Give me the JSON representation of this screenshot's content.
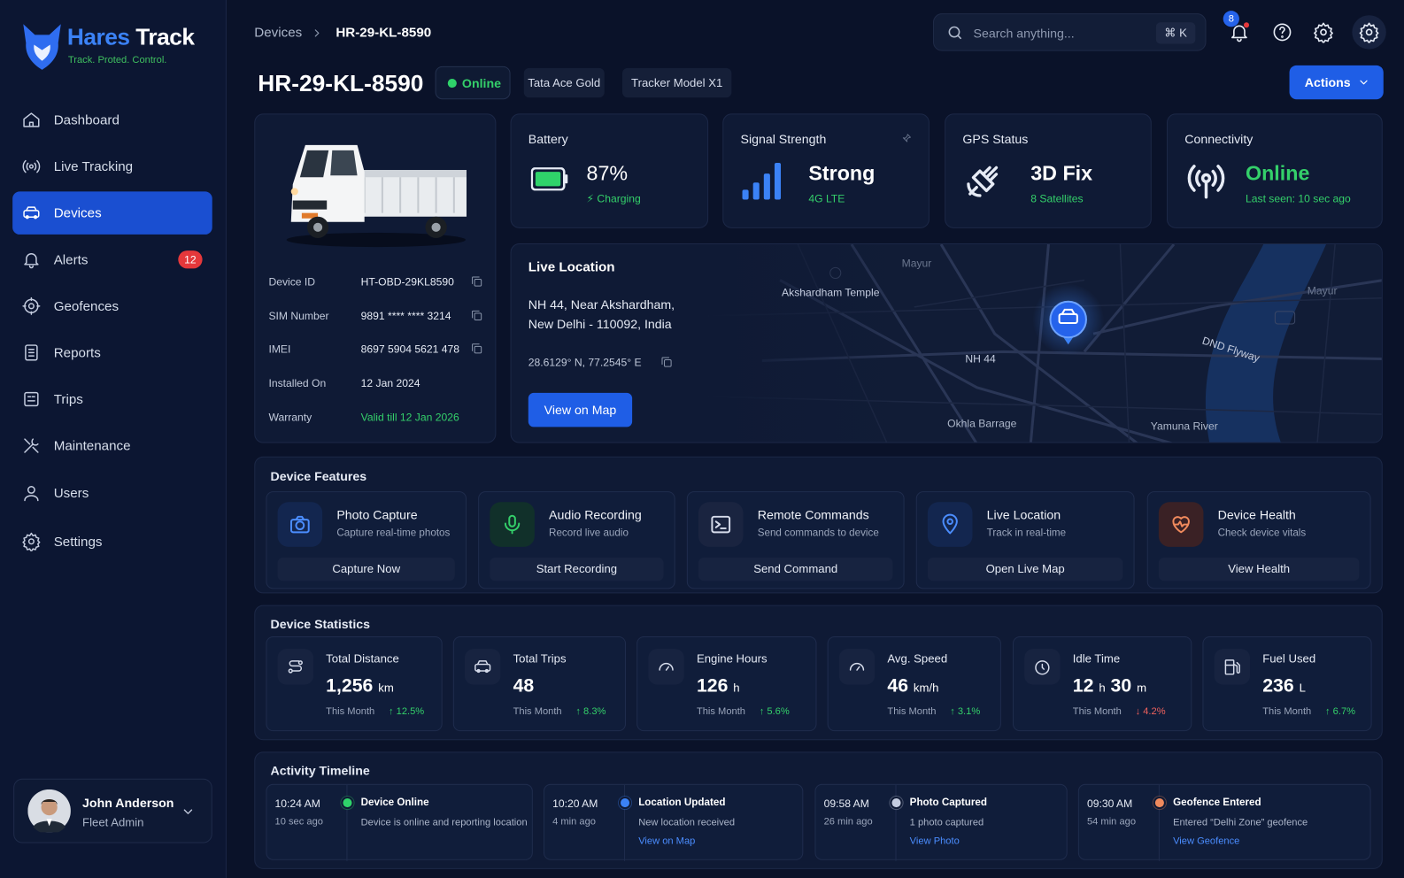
{
  "sidebar": {
    "brand_name_1": "Hares",
    "brand_name_2": "Track",
    "tagline": "Track. Proted. Control.",
    "nav": [
      {
        "label": "Dashboard"
      },
      {
        "label": "Live Tracking"
      },
      {
        "label": "Devices"
      },
      {
        "label": "Alerts",
        "badge": "12"
      },
      {
        "label": "Geofences"
      },
      {
        "label": "Reports"
      },
      {
        "label": "Trips"
      },
      {
        "label": "Maintenance"
      },
      {
        "label": "Users"
      },
      {
        "label": "Settings"
      }
    ],
    "user": {
      "name": "John Anderson",
      "role": "Fleet Admin"
    }
  },
  "header": {
    "breadcrumb": [
      "Devices",
      "HR-29-KL-8590"
    ],
    "search_placeholder": "Search anything...",
    "search_shortcut": "⌘ K",
    "notification_count": "8"
  },
  "device": {
    "name": "HR-29-KL-8590",
    "status": "Online",
    "tags": [
      "Tata Ace Gold",
      "Tracker Model X1"
    ],
    "actions": "Actions",
    "details": [
      {
        "label": "Device ID",
        "value": "HT-OBD-29KL8590"
      },
      {
        "label": "SIM Number",
        "value": "9891 **** **** 3214"
      },
      {
        "label": "IMEI",
        "value": "8697 5904 5621 478"
      },
      {
        "label": "Installed On",
        "value": "12 Jan 2024"
      },
      {
        "label": "Warranty",
        "value": "Valid till 12 Jan 2026"
      }
    ]
  },
  "status_cards": [
    {
      "title": "Battery",
      "value": "87%",
      "detail": "Charging"
    },
    {
      "title": "Signal Strength",
      "value": "Strong",
      "detail": "4G LTE"
    },
    {
      "title": "GPS Status",
      "value": "3D Fix",
      "detail": "8 Satellites"
    },
    {
      "title": "Connectivity",
      "value": "Online",
      "detail": "Last seen: 10 sec ago"
    }
  ],
  "location": {
    "title": "Live Location",
    "address": [
      "NH 44, Near Akshardham,",
      "New Delhi - 110092, India"
    ],
    "coordinates": "28.6129° N, 77.2545° E",
    "button": "View on Map",
    "map_labels": [
      "Akshardham Temple",
      "Mayur",
      "Mayur",
      "DND Flyway",
      "NH 44",
      "Okhla Barrage",
      "Yamuna River"
    ]
  },
  "features": {
    "title": "Device Features",
    "items": [
      {
        "name": "Photo Capture",
        "description": "Capture real-time photos",
        "button": "Capture Now"
      },
      {
        "name": "Audio Recording",
        "description": "Record live audio",
        "button": "Start Recording"
      },
      {
        "name": "Remote Commands",
        "description": "Send commands to device",
        "button": "Send Command"
      },
      {
        "name": "Live Location",
        "description": "Track in real-time",
        "button": "Open Live Map"
      },
      {
        "name": "Device Health",
        "description": "Check device vitals",
        "button": "View Health"
      }
    ]
  },
  "statistics": {
    "title": "Device Statistics",
    "items": [
      {
        "name": "Total Distance",
        "value": "1,256",
        "unit": "km",
        "period": "This Month",
        "change": "↑ 12.5%"
      },
      {
        "name": "Total Trips",
        "value": "48",
        "period": "This Month",
        "change": "↑ 8.3%"
      },
      {
        "name": "Engine Hours",
        "value": "126",
        "unit": "h",
        "period": "This Month",
        "change": "↑ 5.6%"
      },
      {
        "name": "Avg. Speed",
        "value": "46",
        "unit": "km/h",
        "period": "This Month",
        "change": "↑ 3.1%"
      },
      {
        "name": "Idle Time",
        "value": "12",
        "unit": "h",
        "value_2": "30",
        "unit_2": "m",
        "period": "This Month",
        "change": "↓ 4.2%"
      },
      {
        "name": "Fuel Used",
        "value": "236",
        "unit": "L",
        "period": "This Month",
        "change": "↑ 6.7%"
      }
    ]
  },
  "timeline": {
    "title": "Activity Timeline",
    "items": [
      {
        "time": "10:24 AM",
        "ago": "10 sec ago",
        "event": "Device Online",
        "description": "Device is online and reporting location"
      },
      {
        "time": "10:20 AM",
        "ago": "4 min ago",
        "event": "Location Updated",
        "description": "New location received",
        "link": "View on Map"
      },
      {
        "time": "09:58 AM",
        "ago": "26 min ago",
        "event": "Photo Captured",
        "description": "1 photo captured",
        "link": "View Photo"
      },
      {
        "time": "09:30 AM",
        "ago": "54 min ago",
        "event": "Geofence Entered",
        "description": "Entered “Delhi Zone” geofence",
        "link": "View Geofence"
      }
    ]
  }
}
